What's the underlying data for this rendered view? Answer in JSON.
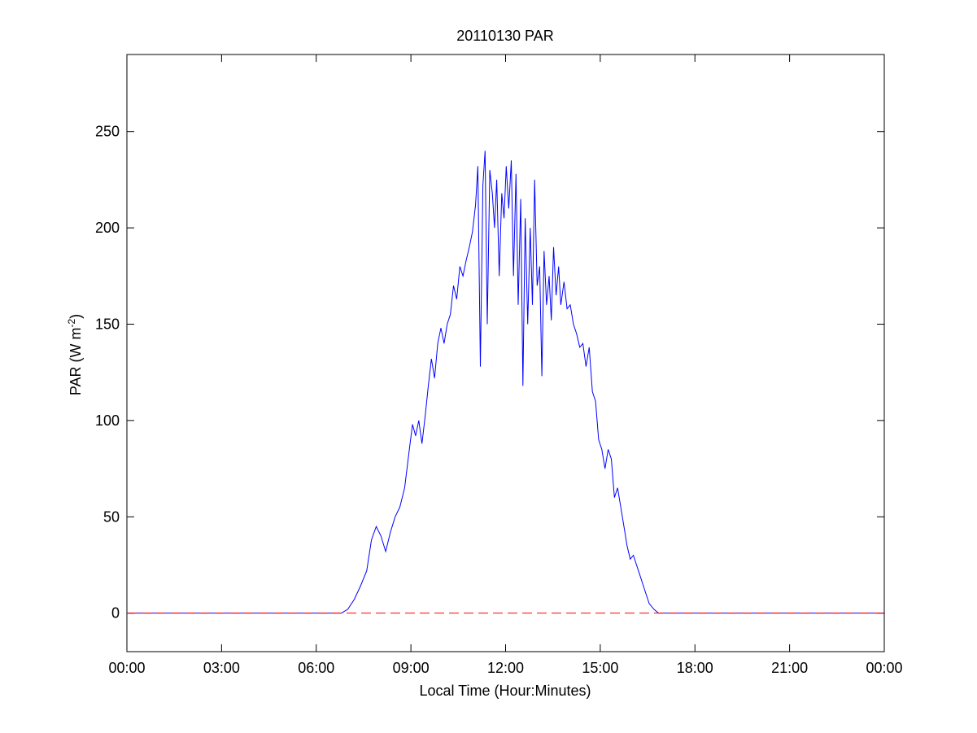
{
  "chart_data": {
    "type": "line",
    "title": "20110130 PAR",
    "xlabel": "Local Time (Hour:Minutes)",
    "ylabel": "PAR (W m",
    "ylabel_sup": "-2",
    "ylabel_close": ")",
    "xlim": [
      0,
      24
    ],
    "ylim": [
      -20,
      290
    ],
    "x_ticks": [
      0,
      3,
      6,
      9,
      12,
      15,
      18,
      21,
      24
    ],
    "x_tick_labels": [
      "00:00",
      "03:00",
      "06:00",
      "09:00",
      "12:00",
      "15:00",
      "18:00",
      "21:00",
      "00:00"
    ],
    "y_ticks": [
      0,
      50,
      100,
      150,
      200,
      250
    ],
    "y_tick_labels": [
      "0",
      "50",
      "100",
      "150",
      "200",
      "250"
    ],
    "grid": false,
    "series": [
      {
        "color": "#0000ff",
        "style": "solid",
        "x": [
          0,
          6.8,
          7.0,
          7.2,
          7.4,
          7.6,
          7.75,
          7.9,
          8.05,
          8.2,
          8.35,
          8.5,
          8.65,
          8.8,
          8.95,
          9.05,
          9.15,
          9.25,
          9.35,
          9.45,
          9.55,
          9.65,
          9.75,
          9.85,
          9.95,
          10.05,
          10.15,
          10.25,
          10.35,
          10.45,
          10.55,
          10.65,
          10.75,
          10.85,
          10.95,
          11.05,
          11.12,
          11.2,
          11.28,
          11.35,
          11.42,
          11.5,
          11.58,
          11.65,
          11.72,
          11.8,
          11.88,
          11.95,
          12.02,
          12.1,
          12.18,
          12.25,
          12.33,
          12.4,
          12.48,
          12.55,
          12.62,
          12.7,
          12.78,
          12.85,
          12.92,
          13.0,
          13.08,
          13.15,
          13.22,
          13.3,
          13.38,
          13.45,
          13.52,
          13.6,
          13.68,
          13.75,
          13.85,
          13.95,
          14.05,
          14.15,
          14.25,
          14.35,
          14.45,
          14.55,
          14.65,
          14.75,
          14.85,
          14.95,
          15.05,
          15.15,
          15.25,
          15.35,
          15.45,
          15.55,
          15.65,
          15.75,
          15.85,
          15.95,
          16.05,
          16.15,
          16.25,
          16.35,
          16.45,
          16.55,
          16.7,
          16.85,
          17.0,
          17.15,
          17.3,
          17.45,
          17.6,
          17.75,
          24
        ],
        "values": [
          0,
          0,
          2,
          7,
          14,
          22,
          38,
          45,
          40,
          32,
          42,
          50,
          55,
          65,
          85,
          98,
          92,
          100,
          88,
          102,
          118,
          132,
          122,
          140,
          148,
          140,
          150,
          155,
          170,
          163,
          180,
          175,
          183,
          190,
          198,
          212,
          232,
          128,
          222,
          240,
          150,
          230,
          218,
          200,
          225,
          175,
          218,
          205,
          232,
          210,
          235,
          175,
          228,
          160,
          215,
          118,
          205,
          150,
          200,
          160,
          225,
          170,
          180,
          123,
          188,
          160,
          175,
          152,
          190,
          165,
          180,
          160,
          172,
          158,
          160,
          150,
          145,
          138,
          140,
          128,
          138,
          115,
          110,
          90,
          85,
          75,
          85,
          80,
          60,
          65,
          55,
          45,
          35,
          28,
          30,
          25,
          20,
          15,
          10,
          5,
          2,
          0,
          0,
          0,
          0,
          0,
          0,
          0,
          0
        ]
      },
      {
        "color": "#ff0000",
        "style": "dashed",
        "x": [
          0,
          24
        ],
        "values": [
          0,
          0
        ]
      }
    ]
  }
}
